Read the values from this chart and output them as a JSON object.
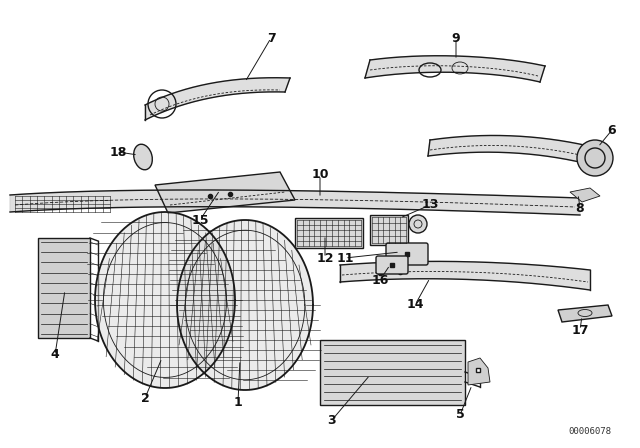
{
  "bg_color": "#ffffff",
  "line_color": "#1a1a1a",
  "watermark": "00006078",
  "figsize": [
    6.4,
    4.48
  ],
  "dpi": 100
}
